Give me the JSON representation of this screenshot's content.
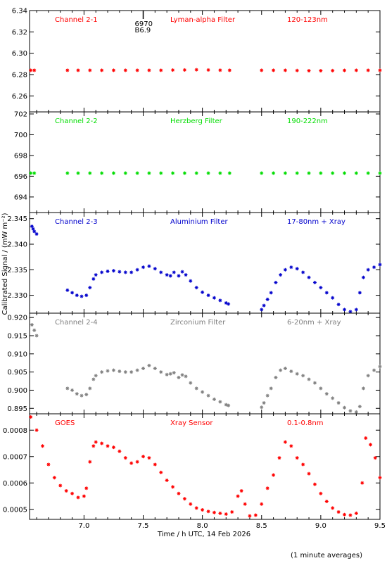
{
  "xlabel": "Time / h UTC, 14 Feb 2026",
  "ylabel": "Calibrated Signal / (mW m⁻²)",
  "footnote": "(1 minute averages)",
  "chart_data": [
    {
      "type": "scatter",
      "labels": [
        "Channel 2-1",
        "Lyman-alpha Filter",
        "120-123nm"
      ],
      "color": "#ff0000",
      "ylim": [
        6.245,
        6.34
      ],
      "yticks": [
        "6.26",
        "6.28",
        "6.30",
        "6.32",
        "6.34"
      ],
      "ytick_values": [
        6.26,
        6.28,
        6.3,
        6.32,
        6.34
      ],
      "annotation": {
        "x": 7.5,
        "lines": [
          "6970",
          "B6.9"
        ]
      },
      "x": [
        6.55,
        6.58,
        6.86,
        6.95,
        7.05,
        7.15,
        7.25,
        7.35,
        7.45,
        7.55,
        7.65,
        7.75,
        7.85,
        7.95,
        8.05,
        8.15,
        8.23,
        8.5,
        8.6,
        8.7,
        8.8,
        8.9,
        9.0,
        9.1,
        9.2,
        9.3,
        9.4,
        9.5
      ],
      "y": [
        6.284,
        6.284,
        6.284,
        6.284,
        6.284,
        6.284,
        6.284,
        6.284,
        6.284,
        6.284,
        6.284,
        6.2842,
        6.2843,
        6.2845,
        6.2843,
        6.2841,
        6.284,
        6.284,
        6.284,
        6.284,
        6.2838,
        6.2836,
        6.2836,
        6.2837,
        6.2839,
        6.284,
        6.284,
        6.284
      ]
    },
    {
      "type": "scatter",
      "labels": [
        "Channel 2-2",
        "Herzberg Filter",
        "190-222nm"
      ],
      "color": "#00dd00",
      "ylim": [
        692.5,
        702.2
      ],
      "yticks": [
        "694",
        "696",
        "698",
        "700",
        "702"
      ],
      "ytick_values": [
        694,
        696,
        698,
        700,
        702
      ],
      "x": [
        6.55,
        6.58,
        6.86,
        6.95,
        7.05,
        7.15,
        7.25,
        7.35,
        7.45,
        7.55,
        7.65,
        7.75,
        7.85,
        7.95,
        8.05,
        8.15,
        8.23,
        8.5,
        8.6,
        8.7,
        8.8,
        8.9,
        9.0,
        9.1,
        9.2,
        9.3,
        9.4,
        9.5
      ],
      "y": [
        696.3,
        696.3,
        696.3,
        696.3,
        696.3,
        696.3,
        696.3,
        696.3,
        696.3,
        696.3,
        696.3,
        696.3,
        696.3,
        696.3,
        696.3,
        696.3,
        696.3,
        696.3,
        696.3,
        696.3,
        696.3,
        696.3,
        696.3,
        696.3,
        696.3,
        696.3,
        696.3,
        696.3
      ]
    },
    {
      "type": "scatter",
      "labels": [
        "Channel 2-3",
        "Aluminium Filter",
        "17-80nm + Xray"
      ],
      "color": "#0000cc",
      "ylim": [
        2.3265,
        2.3462
      ],
      "yticks": [
        "2.330",
        "2.335",
        "2.340",
        "2.345"
      ],
      "ytick_values": [
        2.33,
        2.335,
        2.34,
        2.345
      ],
      "x": [
        6.56,
        6.57,
        6.58,
        6.6,
        6.86,
        6.9,
        6.94,
        6.98,
        7.02,
        7.05,
        7.08,
        7.1,
        7.15,
        7.2,
        7.25,
        7.3,
        7.35,
        7.4,
        7.45,
        7.5,
        7.55,
        7.6,
        7.65,
        7.7,
        7.73,
        7.76,
        7.8,
        7.83,
        7.86,
        7.9,
        7.95,
        8.0,
        8.05,
        8.1,
        8.15,
        8.2,
        8.22,
        8.5,
        8.52,
        8.55,
        8.58,
        8.62,
        8.66,
        8.7,
        8.75,
        8.8,
        8.85,
        8.9,
        8.95,
        9.0,
        9.05,
        9.1,
        9.15,
        9.2,
        9.25,
        9.3,
        9.33,
        9.36,
        9.4,
        9.45,
        9.5
      ],
      "y": [
        2.3435,
        2.343,
        2.3425,
        2.342,
        2.331,
        2.3305,
        2.33,
        2.3298,
        2.33,
        2.3315,
        2.3332,
        2.334,
        2.3345,
        2.3347,
        2.3348,
        2.3346,
        2.3345,
        2.3345,
        2.335,
        2.3355,
        2.3357,
        2.3352,
        2.3345,
        2.334,
        2.3338,
        2.3345,
        2.3338,
        2.3346,
        2.334,
        2.3328,
        2.3315,
        2.3306,
        2.33,
        2.3295,
        2.329,
        2.3285,
        2.3283,
        2.3272,
        2.328,
        2.3292,
        2.3305,
        2.3325,
        2.334,
        2.335,
        2.3355,
        2.3352,
        2.3345,
        2.3335,
        2.3325,
        2.3315,
        2.3305,
        2.3295,
        2.3282,
        2.3272,
        2.3268,
        2.3272,
        2.3305,
        2.3335,
        2.335,
        2.3355,
        2.336
      ]
    },
    {
      "type": "scatter",
      "labels": [
        "Channel 2-4",
        "Zirconium Filter",
        "6-20nm + Xray"
      ],
      "color": "#808080",
      "ylim": [
        0.8935,
        0.9212
      ],
      "yticks": [
        "0.895",
        "0.900",
        "0.905",
        "0.910",
        "0.915",
        "0.920"
      ],
      "ytick_values": [
        0.895,
        0.9,
        0.905,
        0.91,
        0.915,
        0.92
      ],
      "x": [
        6.56,
        6.58,
        6.6,
        6.86,
        6.9,
        6.94,
        6.98,
        7.02,
        7.05,
        7.08,
        7.1,
        7.15,
        7.2,
        7.25,
        7.3,
        7.35,
        7.4,
        7.45,
        7.5,
        7.55,
        7.6,
        7.65,
        7.7,
        7.73,
        7.76,
        7.8,
        7.83,
        7.86,
        7.9,
        7.95,
        8.0,
        8.05,
        8.1,
        8.15,
        8.2,
        8.22,
        8.5,
        8.52,
        8.55,
        8.58,
        8.62,
        8.66,
        8.7,
        8.75,
        8.8,
        8.85,
        8.9,
        8.95,
        9.0,
        9.05,
        9.1,
        9.15,
        9.2,
        9.25,
        9.3,
        9.33,
        9.36,
        9.4,
        9.45,
        9.5
      ],
      "y": [
        0.918,
        0.9165,
        0.915,
        0.9005,
        0.9,
        0.899,
        0.8985,
        0.8988,
        0.9005,
        0.903,
        0.904,
        0.905,
        0.9053,
        0.9055,
        0.9052,
        0.905,
        0.905,
        0.9055,
        0.906,
        0.9068,
        0.906,
        0.905,
        0.9043,
        0.9045,
        0.9048,
        0.9035,
        0.9042,
        0.9038,
        0.902,
        0.9005,
        0.8995,
        0.8985,
        0.8975,
        0.8968,
        0.896,
        0.8958,
        0.8953,
        0.8965,
        0.8985,
        0.9005,
        0.9035,
        0.9055,
        0.906,
        0.9052,
        0.9045,
        0.904,
        0.903,
        0.902,
        0.9005,
        0.899,
        0.8978,
        0.8965,
        0.8952,
        0.8943,
        0.894,
        0.8955,
        0.9005,
        0.904,
        0.9055,
        0.9065
      ]
    },
    {
      "type": "scatter",
      "labels": [
        "GOES",
        "Xray Sensor",
        "0.1-0.8nm"
      ],
      "color": "#ff0000",
      "ylim": [
        0.000462,
        0.000862
      ],
      "yticks": [
        "0.0005",
        "0.0006",
        "0.0007",
        "0.0008"
      ],
      "ytick_values": [
        0.0005,
        0.0006,
        0.0007,
        0.0008
      ],
      "x": [
        6.55,
        6.6,
        6.65,
        6.7,
        6.75,
        6.8,
        6.85,
        6.9,
        6.95,
        7.0,
        7.02,
        7.05,
        7.08,
        7.1,
        7.15,
        7.2,
        7.25,
        7.3,
        7.35,
        7.4,
        7.45,
        7.5,
        7.55,
        7.6,
        7.65,
        7.7,
        7.75,
        7.8,
        7.85,
        7.9,
        7.95,
        8.0,
        8.05,
        8.1,
        8.15,
        8.2,
        8.25,
        8.3,
        8.33,
        8.36,
        8.4,
        8.45,
        8.5,
        8.55,
        8.6,
        8.65,
        8.7,
        8.75,
        8.8,
        8.85,
        8.9,
        8.95,
        9.0,
        9.05,
        9.1,
        9.15,
        9.2,
        9.25,
        9.3,
        9.35,
        9.38,
        9.42,
        9.46,
        9.5
      ],
      "y": [
        0.00085,
        0.0008,
        0.00074,
        0.00067,
        0.00062,
        0.00059,
        0.00057,
        0.00056,
        0.000545,
        0.00055,
        0.00058,
        0.00068,
        0.00074,
        0.000755,
        0.00075,
        0.00074,
        0.000735,
        0.00072,
        0.000695,
        0.000675,
        0.00068,
        0.0007,
        0.000695,
        0.00067,
        0.00064,
        0.00061,
        0.000585,
        0.00056,
        0.00054,
        0.00052,
        0.000505,
        0.000498,
        0.000492,
        0.000488,
        0.000485,
        0.000482,
        0.00049,
        0.00055,
        0.00057,
        0.00052,
        0.000475,
        0.000478,
        0.00052,
        0.00058,
        0.00063,
        0.000695,
        0.000755,
        0.00074,
        0.000695,
        0.00067,
        0.000635,
        0.000595,
        0.00056,
        0.00053,
        0.000505,
        0.00049,
        0.00048,
        0.000478,
        0.000485,
        0.0006,
        0.00077,
        0.000745,
        0.000695,
        0.00062
      ]
    }
  ],
  "xticks": [
    "7.0",
    "7.5",
    "8.0",
    "8.5",
    "9.0",
    "9.5"
  ],
  "xtick_values": [
    7.0,
    7.5,
    8.0,
    8.5,
    9.0,
    9.5
  ],
  "xlim": [
    6.54,
    9.5
  ]
}
